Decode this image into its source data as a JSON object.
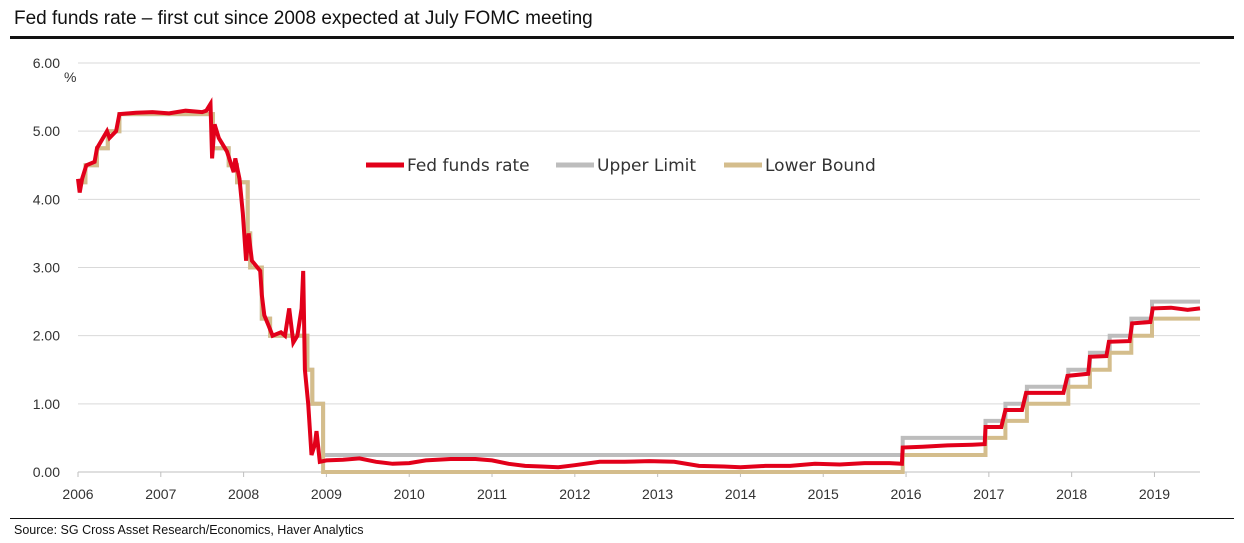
{
  "title": "Fed funds rate – first cut since 2008 expected at July FOMC meeting",
  "source": "Source: SG Cross Asset Research/Economics, Haver Analytics",
  "colors": {
    "fed_funds": "#e2001a",
    "upper": "#bdbdbd",
    "lower": "#d4bd8c",
    "grid": "#d9d9d9"
  },
  "chart_data": {
    "type": "line",
    "title": "Fed funds rate – first cut since 2008 expected at July FOMC meeting",
    "ylabel": "%",
    "xlabel": "",
    "ylim": [
      0,
      6
    ],
    "xlim": [
      2006,
      2019.55
    ],
    "y_ticks": [
      "0.00",
      "1.00",
      "2.00",
      "3.00",
      "4.00",
      "5.00",
      "6.00"
    ],
    "x_ticks": [
      "2006",
      "2007",
      "2008",
      "2009",
      "2010",
      "2011",
      "2012",
      "2013",
      "2014",
      "2015",
      "2016",
      "2017",
      "2018",
      "2019"
    ],
    "grid": "horizontal",
    "legend_position": "top-center",
    "series": [
      {
        "name": "Fed funds rate",
        "points": [
          [
            2006.0,
            4.3
          ],
          [
            2006.02,
            4.1
          ],
          [
            2006.05,
            4.3
          ],
          [
            2006.1,
            4.5
          ],
          [
            2006.2,
            4.55
          ],
          [
            2006.23,
            4.75
          ],
          [
            2006.35,
            5.0
          ],
          [
            2006.38,
            4.9
          ],
          [
            2006.46,
            5.0
          ],
          [
            2006.5,
            5.25
          ],
          [
            2006.7,
            5.27
          ],
          [
            2006.9,
            5.28
          ],
          [
            2007.1,
            5.26
          ],
          [
            2007.3,
            5.3
          ],
          [
            2007.5,
            5.28
          ],
          [
            2007.55,
            5.3
          ],
          [
            2007.6,
            5.4
          ],
          [
            2007.62,
            4.6
          ],
          [
            2007.65,
            5.1
          ],
          [
            2007.7,
            4.9
          ],
          [
            2007.75,
            4.8
          ],
          [
            2007.8,
            4.7
          ],
          [
            2007.88,
            4.4
          ],
          [
            2007.9,
            4.6
          ],
          [
            2007.95,
            4.3
          ],
          [
            2007.99,
            3.8
          ],
          [
            2008.03,
            3.1
          ],
          [
            2008.06,
            3.5
          ],
          [
            2008.1,
            3.1
          ],
          [
            2008.2,
            2.95
          ],
          [
            2008.22,
            2.6
          ],
          [
            2008.25,
            2.3
          ],
          [
            2008.3,
            2.15
          ],
          [
            2008.35,
            2.0
          ],
          [
            2008.45,
            2.05
          ],
          [
            2008.5,
            2.0
          ],
          [
            2008.55,
            2.4
          ],
          [
            2008.6,
            1.9
          ],
          [
            2008.65,
            2.0
          ],
          [
            2008.7,
            2.4
          ],
          [
            2008.72,
            2.95
          ],
          [
            2008.74,
            1.5
          ],
          [
            2008.78,
            1.0
          ],
          [
            2008.82,
            0.25
          ],
          [
            2008.86,
            0.4
          ],
          [
            2008.88,
            0.6
          ],
          [
            2008.92,
            0.15
          ],
          [
            2009.0,
            0.17
          ],
          [
            2009.2,
            0.18
          ],
          [
            2009.4,
            0.2
          ],
          [
            2009.6,
            0.15
          ],
          [
            2009.8,
            0.12
          ],
          [
            2010.0,
            0.13
          ],
          [
            2010.2,
            0.17
          ],
          [
            2010.5,
            0.19
          ],
          [
            2010.8,
            0.19
          ],
          [
            2011.0,
            0.17
          ],
          [
            2011.2,
            0.12
          ],
          [
            2011.4,
            0.09
          ],
          [
            2011.6,
            0.08
          ],
          [
            2011.8,
            0.07
          ],
          [
            2012.0,
            0.1
          ],
          [
            2012.3,
            0.15
          ],
          [
            2012.6,
            0.15
          ],
          [
            2012.9,
            0.16
          ],
          [
            2013.2,
            0.15
          ],
          [
            2013.5,
            0.09
          ],
          [
            2013.8,
            0.08
          ],
          [
            2014.0,
            0.07
          ],
          [
            2014.3,
            0.09
          ],
          [
            2014.6,
            0.09
          ],
          [
            2014.9,
            0.12
          ],
          [
            2015.2,
            0.11
          ],
          [
            2015.5,
            0.13
          ],
          [
            2015.8,
            0.13
          ],
          [
            2015.95,
            0.12
          ],
          [
            2015.96,
            0.36
          ],
          [
            2016.2,
            0.37
          ],
          [
            2016.5,
            0.39
          ],
          [
            2016.8,
            0.4
          ],
          [
            2016.95,
            0.41
          ],
          [
            2016.96,
            0.66
          ],
          [
            2017.15,
            0.66
          ],
          [
            2017.2,
            0.91
          ],
          [
            2017.4,
            0.91
          ],
          [
            2017.45,
            1.16
          ],
          [
            2017.9,
            1.16
          ],
          [
            2017.95,
            1.41
          ],
          [
            2018.2,
            1.44
          ],
          [
            2018.22,
            1.69
          ],
          [
            2018.42,
            1.7
          ],
          [
            2018.45,
            1.91
          ],
          [
            2018.7,
            1.92
          ],
          [
            2018.73,
            2.18
          ],
          [
            2018.95,
            2.2
          ],
          [
            2018.98,
            2.4
          ],
          [
            2019.2,
            2.41
          ],
          [
            2019.4,
            2.38
          ],
          [
            2019.55,
            2.4
          ]
        ]
      },
      {
        "name": "Upper Limit",
        "points": [
          [
            2006.0,
            4.25
          ],
          [
            2006.09,
            4.5
          ],
          [
            2006.23,
            4.75
          ],
          [
            2006.36,
            5.0
          ],
          [
            2006.5,
            5.25
          ],
          [
            2007.63,
            4.75
          ],
          [
            2007.82,
            4.5
          ],
          [
            2007.92,
            4.25
          ],
          [
            2008.05,
            3.5
          ],
          [
            2008.08,
            3.0
          ],
          [
            2008.22,
            2.25
          ],
          [
            2008.32,
            2.0
          ],
          [
            2008.77,
            1.5
          ],
          [
            2008.83,
            1.0
          ],
          [
            2008.96,
            0.25
          ],
          [
            2015.96,
            0.5
          ],
          [
            2016.96,
            0.75
          ],
          [
            2017.2,
            1.0
          ],
          [
            2017.46,
            1.25
          ],
          [
            2017.96,
            1.5
          ],
          [
            2018.22,
            1.75
          ],
          [
            2018.46,
            2.0
          ],
          [
            2018.72,
            2.25
          ],
          [
            2018.97,
            2.5
          ],
          [
            2019.55,
            2.5
          ]
        ]
      },
      {
        "name": "Lower Bound",
        "points": [
          [
            2006.0,
            4.25
          ],
          [
            2006.09,
            4.5
          ],
          [
            2006.23,
            4.75
          ],
          [
            2006.36,
            5.0
          ],
          [
            2006.5,
            5.25
          ],
          [
            2007.63,
            4.75
          ],
          [
            2007.82,
            4.5
          ],
          [
            2007.92,
            4.25
          ],
          [
            2008.05,
            3.5
          ],
          [
            2008.08,
            3.0
          ],
          [
            2008.22,
            2.25
          ],
          [
            2008.32,
            2.0
          ],
          [
            2008.77,
            1.5
          ],
          [
            2008.83,
            1.0
          ],
          [
            2008.96,
            0.0
          ],
          [
            2015.96,
            0.25
          ],
          [
            2016.96,
            0.5
          ],
          [
            2017.2,
            0.75
          ],
          [
            2017.46,
            1.0
          ],
          [
            2017.96,
            1.25
          ],
          [
            2018.22,
            1.5
          ],
          [
            2018.46,
            1.75
          ],
          [
            2018.72,
            2.0
          ],
          [
            2018.97,
            2.25
          ],
          [
            2019.55,
            2.25
          ]
        ]
      }
    ]
  }
}
